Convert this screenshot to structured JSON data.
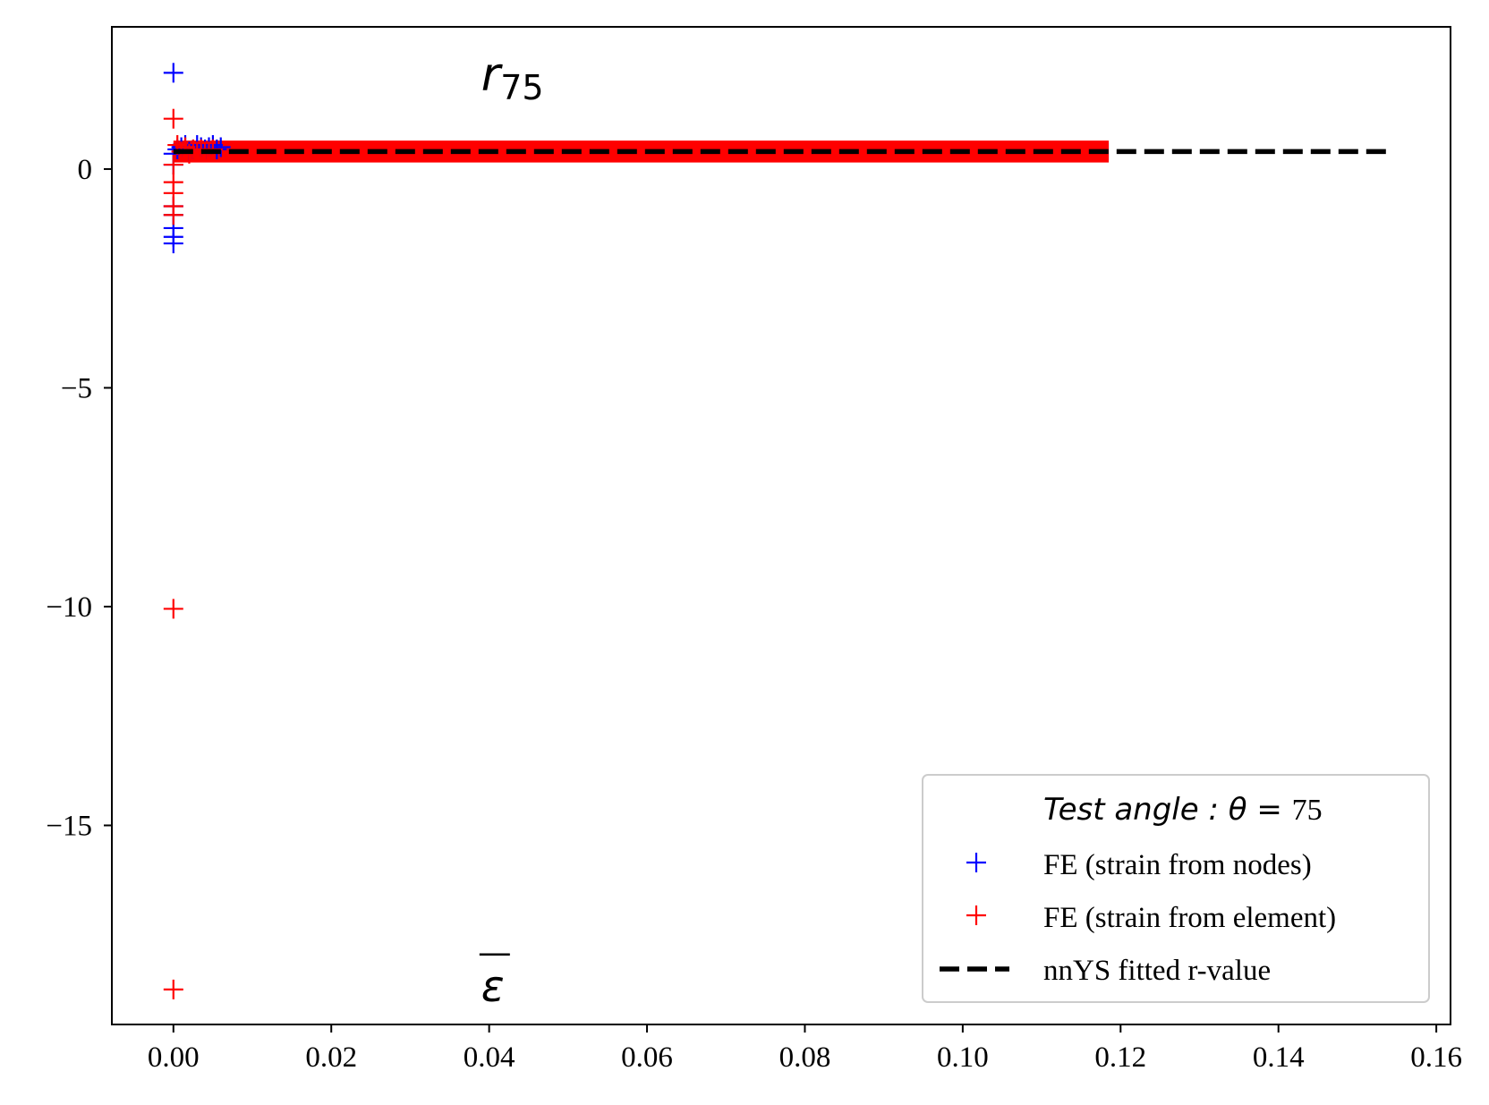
{
  "chart_data": {
    "type": "scatter",
    "title": "",
    "xlabel": "",
    "ylabel": "",
    "xlim": [
      -0.0078,
      0.1618
    ],
    "ylim": [
      -19.55,
      3.25
    ],
    "xticks": [
      0.0,
      0.02,
      0.04,
      0.06,
      0.08,
      0.1,
      0.12,
      0.14,
      0.16
    ],
    "xtick_labels": [
      "0.00",
      "0.02",
      "0.04",
      "0.06",
      "0.08",
      "0.10",
      "0.12",
      "0.14",
      "0.16"
    ],
    "yticks": [
      0,
      -5,
      -10,
      -15
    ],
    "ytick_labels": [
      "0",
      "−5",
      "−10",
      "−15"
    ],
    "grid": false,
    "annotations": [
      {
        "base": "r",
        "sub": "75",
        "x": 0.039,
        "y": 2.1
      },
      {
        "base": "ε",
        "overline": true,
        "x": 0.039,
        "y": -18.4
      }
    ],
    "legend": {
      "placement": "lower-right",
      "title_italic": "Test  angle : θ =",
      "title_value": "75",
      "entries": [
        {
          "label": "FE (strain from nodes)",
          "color": "#0000ff",
          "marker": "+"
        },
        {
          "label": "FE (strain from element)",
          "color": "#ff0000",
          "marker": "+"
        },
        {
          "label": "nnYS fitted r-value",
          "color": "#000000",
          "marker": "dashed-line"
        }
      ]
    },
    "series": [
      {
        "name": "FE (strain from nodes)",
        "color": "#0000ff",
        "marker": "+",
        "points": [
          [
            0.0,
            2.2
          ],
          [
            0.0,
            0.35
          ],
          [
            0.0,
            0.1
          ],
          [
            0.0,
            -0.85
          ],
          [
            0.0,
            -1.05
          ],
          [
            0.0,
            -1.35
          ],
          [
            0.0,
            -1.55
          ],
          [
            0.0,
            -1.7
          ],
          [
            0.0005,
            0.45
          ],
          [
            0.001,
            0.5
          ],
          [
            0.0015,
            0.55
          ],
          [
            0.002,
            0.4
          ],
          [
            0.0025,
            0.45
          ],
          [
            0.003,
            0.55
          ],
          [
            0.0035,
            0.5
          ],
          [
            0.004,
            0.45
          ],
          [
            0.0045,
            0.5
          ],
          [
            0.005,
            0.55
          ],
          [
            0.0055,
            0.45
          ],
          [
            0.006,
            0.5
          ]
        ],
        "band": {
          "x_start": 0.0,
          "x_end": 0.1185,
          "y_center": 0.4,
          "y_halfwidth": 0.2
        }
      },
      {
        "name": "FE (strain from element)",
        "color": "#ff0000",
        "marker": "+",
        "points": [
          [
            0.0,
            1.15
          ],
          [
            0.0,
            0.1
          ],
          [
            0.0,
            -0.3
          ],
          [
            0.0,
            -0.55
          ],
          [
            0.0,
            -0.85
          ],
          [
            0.0,
            -1.05
          ],
          [
            0.0,
            -10.05
          ],
          [
            0.0,
            -18.75
          ],
          [
            0.0005,
            0.55
          ],
          [
            0.001,
            0.4
          ],
          [
            0.0015,
            0.5
          ],
          [
            0.002,
            0.35
          ],
          [
            0.0025,
            0.45
          ],
          [
            0.003,
            0.4
          ],
          [
            0.0035,
            0.45
          ],
          [
            0.004,
            0.4
          ],
          [
            0.0045,
            0.4
          ],
          [
            0.005,
            0.45
          ]
        ],
        "band": {
          "x_start": 0.0,
          "x_end": 0.1185,
          "y_center": 0.4,
          "y_halfwidth": 0.25
        }
      },
      {
        "name": "nnYS fitted r-value",
        "color": "#000000",
        "line_style": "dashed",
        "x": [
          0.0,
          0.1545
        ],
        "y": [
          0.4,
          0.4
        ]
      }
    ]
  }
}
